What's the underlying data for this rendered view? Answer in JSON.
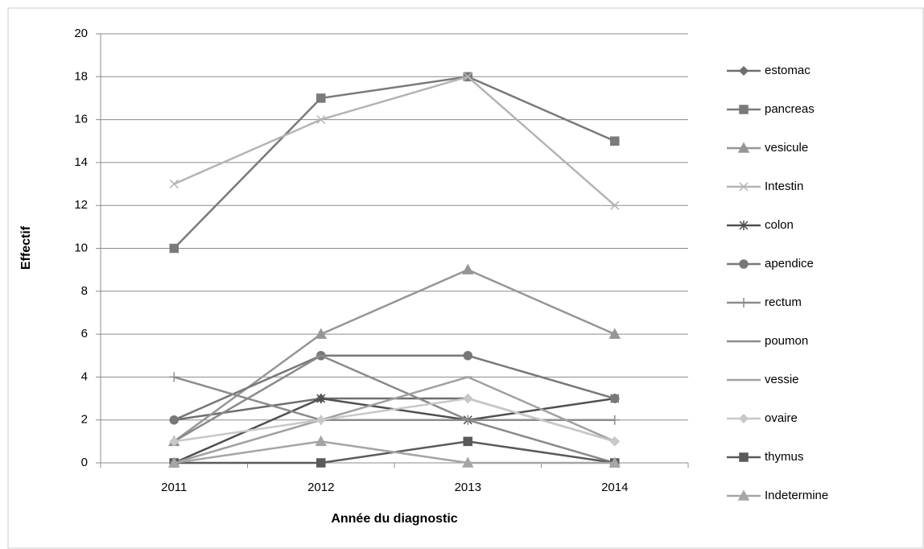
{
  "chart_data": {
    "type": "line",
    "x_label": "Année du diagnostic",
    "y_label": "Effectif",
    "categories": [
      "2011",
      "2012",
      "2013",
      "2014"
    ],
    "ylim": [
      0,
      20
    ],
    "yticks": [
      0,
      2,
      4,
      6,
      8,
      10,
      12,
      14,
      16,
      18,
      20
    ],
    "grid": true,
    "legend": "right",
    "series": [
      {
        "name": "estomac",
        "color": "#6e6e6e",
        "marker": "diamond",
        "values": [
          2,
          3,
          3,
          1
        ]
      },
      {
        "name": "pancreas",
        "color": "#7a7a7a",
        "marker": "square",
        "values": [
          10,
          17,
          18,
          15
        ]
      },
      {
        "name": "vesicule",
        "color": "#969696",
        "marker": "triangle",
        "values": [
          1,
          6,
          9,
          6
        ]
      },
      {
        "name": "Intestin",
        "color": "#b4b4b4",
        "marker": "x",
        "values": [
          13,
          16,
          18,
          12
        ]
      },
      {
        "name": "colon",
        "color": "#505050",
        "marker": "star",
        "values": [
          0,
          3,
          2,
          3
        ]
      },
      {
        "name": "apendice",
        "color": "#787878",
        "marker": "circle",
        "values": [
          2,
          5,
          5,
          3
        ]
      },
      {
        "name": "rectum",
        "color": "#8c8c8c",
        "marker": "plus",
        "values": [
          4,
          2,
          2,
          2
        ]
      },
      {
        "name": "poumon",
        "color": "#8a8a8a",
        "marker": "dash",
        "values": [
          1,
          5,
          2,
          0
        ]
      },
      {
        "name": "vessie",
        "color": "#a0a0a0",
        "marker": "dash",
        "values": [
          0,
          2,
          4,
          1
        ]
      },
      {
        "name": "ovaire",
        "color": "#c8c8c8",
        "marker": "diamond",
        "values": [
          1,
          2,
          3,
          1
        ]
      },
      {
        "name": "thymus",
        "color": "#5a5a5a",
        "marker": "square",
        "values": [
          0,
          0,
          1,
          0
        ]
      },
      {
        "name": "Indetermine",
        "color": "#a5a5a5",
        "marker": "triangle",
        "values": [
          0,
          1,
          0,
          0
        ]
      }
    ]
  }
}
